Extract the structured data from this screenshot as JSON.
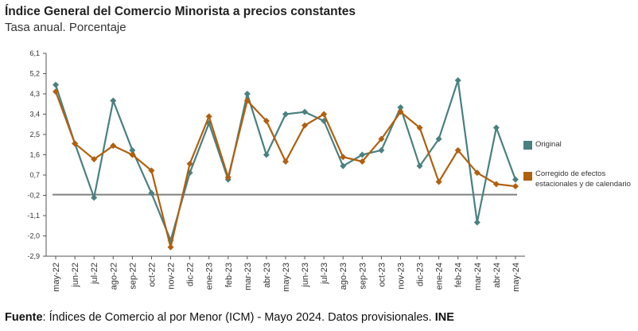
{
  "chart_data": {
    "type": "line",
    "title": "Índice General del Comercio Minorista a precios constantes",
    "subtitle": "Tasa anual. Porcentaje",
    "categories": [
      "may-22",
      "jun-22",
      "jul-22",
      "ago-22",
      "sep-22",
      "oct-22",
      "nov-22",
      "dic-22",
      "ene-23",
      "feb-23",
      "mar-23",
      "abr-23",
      "may-23",
      "jun-23",
      "jul-23",
      "ago-23",
      "sep-23",
      "oct-23",
      "nov-23",
      "dic-23",
      "ene-24",
      "feb-24",
      "mar-24",
      "abr-24",
      "may-24"
    ],
    "yticks": [
      "6,1",
      "5,2",
      "4,3",
      "3,4",
      "2,5",
      "1,6",
      "0,7",
      "-0,2",
      "-1,1",
      "-2,0",
      "-2,9"
    ],
    "ylim": [
      -2.9,
      6.1
    ],
    "series": [
      {
        "name": "Original",
        "color": "#4a8080",
        "values": [
          4.7,
          2.1,
          -0.3,
          4.0,
          1.8,
          -0.1,
          -2.2,
          0.8,
          3.0,
          0.5,
          4.3,
          1.6,
          3.4,
          3.5,
          3.1,
          1.1,
          1.6,
          1.8,
          3.7,
          1.1,
          2.3,
          4.9,
          -1.4,
          2.8,
          0.5
        ]
      },
      {
        "name": "Corregido de efectos estacionales y de calendario",
        "color": "#b0600f",
        "values": [
          4.4,
          2.1,
          1.4,
          2.0,
          1.6,
          0.9,
          -2.5,
          1.2,
          3.3,
          0.6,
          4.0,
          3.1,
          1.3,
          2.9,
          3.4,
          1.5,
          1.3,
          2.3,
          3.5,
          2.8,
          0.4,
          1.8,
          0.8,
          0.3,
          0.2
        ]
      }
    ],
    "reference_line_color": "#808080"
  },
  "legend": {
    "original": "Original",
    "corrected": "Corregido de efectos estacionales y de calendario"
  },
  "source": {
    "label": "Fuente",
    "text": ": Índices de Comercio al por Menor (ICM) - Mayo 2024. Datos provisionales. ",
    "org": "INE"
  }
}
